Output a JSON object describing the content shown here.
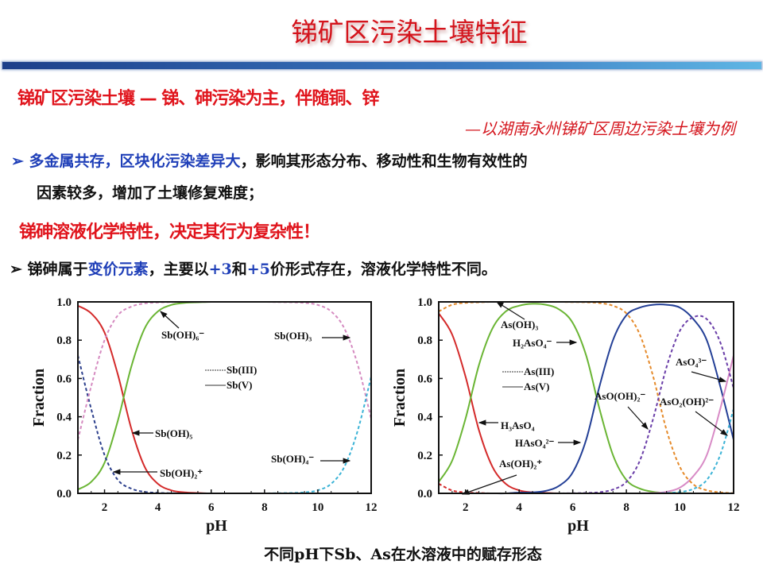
{
  "slide": {
    "title": "锑矿区污染土壤特征",
    "heading1": "锑矿区污染土壤 — 锑、砷污染为主，伴随铜、锌",
    "subheading": "—以湖南永州锑矿区周边污染土壤为例",
    "bullet1": {
      "marker": "➢",
      "blue_text": "多金属共存，区块化污染差异大",
      "rest": "，影响其形态分布、移动性和生物有效性的",
      "line2": "因素较多，增加了土壤修复难度；"
    },
    "heading2": "锑砷溶液化学特性，决定其行为复杂性！",
    "bullet2": {
      "marker": "➢",
      "t1": "锑砷属于",
      "blue1": "变价元素",
      "t2": "，主要以",
      "blue2": "+3",
      "t3": "和",
      "blue3": "+5",
      "t4": "价形式存在，溶液化学特性不同。"
    },
    "caption": "不同pH下Sb、As在水溶液中的赋存形态",
    "colors": {
      "title_red": "#d4141c",
      "blue": "#1f3fb8",
      "bar_start": "#1d3f8a",
      "bar_end": "#5fb6e4"
    }
  },
  "chart_data": [
    {
      "type": "line",
      "xlabel": "pH",
      "ylabel": "Fraction",
      "xlim": [
        1,
        12
      ],
      "ylim": [
        0,
        1
      ],
      "xticks": [
        "2",
        "4",
        "6",
        "8",
        "10",
        "12"
      ],
      "yticks": [
        "0.0",
        "0.2",
        "0.4",
        "0.6",
        "0.8",
        "1.0"
      ],
      "legend": [
        {
          "label": "Sb(III)",
          "style": "dashed"
        },
        {
          "label": "Sb(V)",
          "style": "solid"
        }
      ],
      "x": [
        1,
        1.5,
        2,
        2.5,
        3,
        3.5,
        4,
        4.5,
        5,
        5.5,
        6,
        6.5,
        7,
        7.5,
        8,
        8.5,
        9,
        9.5,
        10,
        10.5,
        11,
        11.5,
        12
      ],
      "series": [
        {
          "name": "Sb(OH)₅",
          "style": "solid",
          "color": "#d42a2a",
          "values": [
            0.98,
            0.94,
            0.84,
            0.62,
            0.34,
            0.14,
            0.05,
            0.016,
            0.005,
            0.002,
            0,
            0,
            0,
            0,
            0,
            0,
            0,
            0,
            0,
            0,
            0,
            0,
            0
          ]
        },
        {
          "name": "Sb(OH)₆⁻",
          "style": "solid",
          "color": "#6ab534",
          "values": [
            0.02,
            0.06,
            0.16,
            0.38,
            0.66,
            0.86,
            0.95,
            0.984,
            0.995,
            0.998,
            1,
            1,
            1,
            1,
            1,
            1,
            1,
            1,
            1,
            1,
            1,
            1,
            1
          ]
        },
        {
          "name": "Sb(OH)₂⁺",
          "style": "dashed",
          "color": "#2c3f8c",
          "values": [
            0.72,
            0.44,
            0.2,
            0.07,
            0.025,
            0.008,
            0.003,
            0.001,
            0,
            0,
            0,
            0,
            0,
            0,
            0,
            0,
            0,
            0,
            0,
            0,
            0,
            0,
            0
          ]
        },
        {
          "name": "Sb(OH)₃",
          "style": "dashed",
          "color": "#d58ac0",
          "values": [
            0.28,
            0.56,
            0.8,
            0.93,
            0.975,
            0.992,
            0.997,
            0.999,
            1,
            1,
            1,
            1,
            1,
            1,
            1,
            0.999,
            0.998,
            0.995,
            0.984,
            0.95,
            0.86,
            0.67,
            0.39
          ]
        },
        {
          "name": "Sb(OH)₄⁻",
          "style": "dashed",
          "color": "#3bb3d6",
          "values": [
            0,
            0,
            0,
            0,
            0,
            0,
            0,
            0,
            0,
            0,
            0,
            0,
            0,
            0,
            0,
            0.001,
            0.002,
            0.005,
            0.016,
            0.05,
            0.14,
            0.33,
            0.61
          ]
        }
      ]
    },
    {
      "type": "line",
      "xlabel": "pH",
      "ylabel": "Fraction",
      "xlim": [
        1,
        12
      ],
      "ylim": [
        0,
        1
      ],
      "xticks": [
        "2",
        "4",
        "6",
        "8",
        "10",
        "12"
      ],
      "yticks": [
        "0.0",
        "0.2",
        "0.4",
        "0.6",
        "0.8",
        "1.0"
      ],
      "legend": [
        {
          "label": "As(III)",
          "style": "dashed"
        },
        {
          "label": "As(V)",
          "style": "solid"
        }
      ],
      "x": [
        1,
        1.5,
        2,
        2.5,
        3,
        3.5,
        4,
        4.5,
        5,
        5.5,
        6,
        6.5,
        7,
        7.5,
        8,
        8.5,
        9,
        9.5,
        10,
        10.5,
        11,
        11.5,
        12
      ],
      "series": [
        {
          "name": "H₃AsO₄",
          "style": "solid",
          "color": "#d42a2a",
          "values": [
            0.94,
            0.83,
            0.61,
            0.33,
            0.14,
            0.05,
            0.016,
            0.005,
            0.002,
            0,
            0,
            0,
            0,
            0,
            0,
            0,
            0,
            0,
            0,
            0,
            0,
            0,
            0
          ]
        },
        {
          "name": "H₂AsO₄⁻",
          "style": "solid",
          "color": "#6ab534",
          "values": [
            0.06,
            0.17,
            0.39,
            0.67,
            0.86,
            0.95,
            0.98,
            0.99,
            0.985,
            0.96,
            0.89,
            0.72,
            0.44,
            0.2,
            0.07,
            0.025,
            0.008,
            0.003,
            0.001,
            0,
            0,
            0,
            0
          ]
        },
        {
          "name": "HAsO₄²⁻",
          "style": "solid",
          "color": "#233f96",
          "values": [
            0,
            0,
            0,
            0,
            0,
            0,
            0.004,
            0.005,
            0.013,
            0.04,
            0.11,
            0.28,
            0.56,
            0.8,
            0.93,
            0.97,
            0.985,
            0.985,
            0.97,
            0.91,
            0.8,
            0.56,
            0.28
          ]
        },
        {
          "name": "AsO₄³⁻",
          "style": "solid",
          "color": "#d88bc6",
          "values": [
            0,
            0,
            0,
            0,
            0,
            0,
            0,
            0,
            0,
            0,
            0,
            0,
            0,
            0,
            0,
            0,
            0.002,
            0.008,
            0.03,
            0.09,
            0.2,
            0.44,
            0.72
          ]
        },
        {
          "name": "As(OH)₂⁺",
          "style": "dashed",
          "color": "#d42a2a",
          "values": [
            0.05,
            0.015,
            0.005,
            0.002,
            0,
            0,
            0,
            0,
            0,
            0,
            0,
            0,
            0,
            0,
            0,
            0,
            0,
            0,
            0,
            0,
            0,
            0,
            0
          ]
        },
        {
          "name": "As(OH)₃",
          "style": "dashed",
          "color": "#e58a2a",
          "values": [
            0.95,
            0.985,
            0.995,
            0.998,
            1,
            1,
            1,
            1,
            1,
            1,
            0.999,
            0.998,
            0.994,
            0.98,
            0.94,
            0.83,
            0.61,
            0.33,
            0.137,
            0.047,
            0.016,
            0.005,
            0.001
          ]
        },
        {
          "name": "AsO(OH)₂⁻",
          "style": "dashed",
          "color": "#6a3ea8",
          "values": [
            0,
            0,
            0,
            0,
            0,
            0,
            0,
            0,
            0,
            0,
            0.001,
            0.002,
            0.006,
            0.02,
            0.06,
            0.17,
            0.39,
            0.66,
            0.85,
            0.92,
            0.91,
            0.79,
            0.55
          ]
        },
        {
          "name": "AsO₂(OH)²⁻",
          "style": "dashed",
          "color": "#3bb3d6",
          "values": [
            0,
            0,
            0,
            0,
            0,
            0,
            0,
            0,
            0,
            0,
            0,
            0,
            0,
            0,
            0,
            0,
            0,
            0.002,
            0.007,
            0.023,
            0.07,
            0.2,
            0.44
          ]
        }
      ]
    }
  ]
}
